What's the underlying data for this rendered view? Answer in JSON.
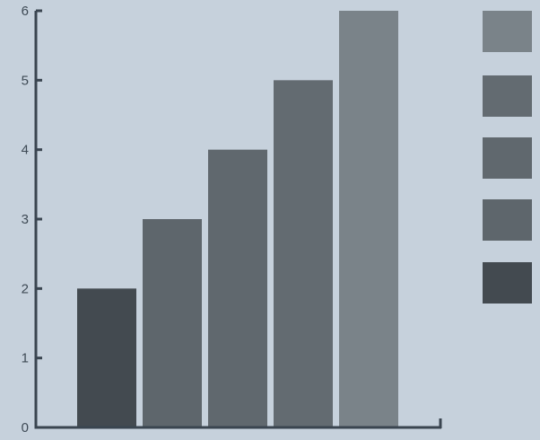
{
  "chart_data": {
    "type": "bar",
    "categories": [
      "",
      "",
      "",
      "",
      ""
    ],
    "values": [
      2,
      3,
      4,
      5,
      6
    ],
    "ylim": [
      0,
      6
    ],
    "yticks": [
      "0",
      "1",
      "2",
      "3",
      "4",
      "5",
      "6"
    ],
    "grid": false,
    "legend_position": "right",
    "bar_colors": [
      "#434a50",
      "#5e666c",
      "#60686e",
      "#636b71",
      "#7a8389"
    ],
    "legend_swatch_colors": [
      "#7a8389",
      "#636b71",
      "#60686e",
      "#5e666c",
      "#434a50"
    ],
    "axis_color": "#3a4550",
    "background": "#c6d1dc"
  }
}
